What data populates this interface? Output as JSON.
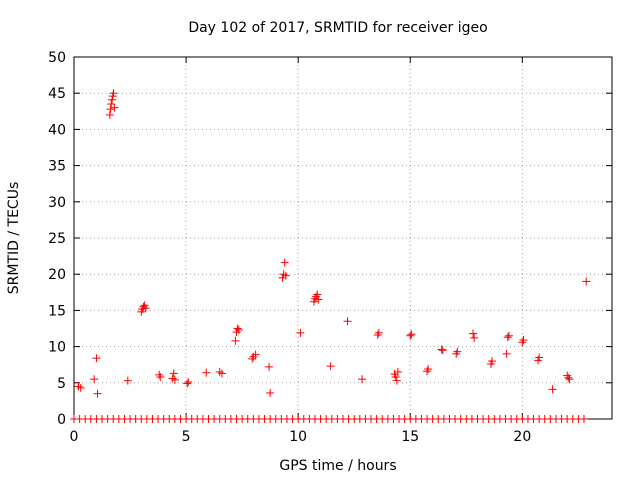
{
  "chart_data": {
    "type": "scatter",
    "title": "Day 102 of 2017, SRMTID for receiver igeo",
    "xlabel": "GPS time / hours",
    "ylabel": "SRMTID / TECUs",
    "xlim": [
      0,
      24
    ],
    "ylim": [
      0,
      50
    ],
    "xticks": [
      0,
      5,
      10,
      15,
      20
    ],
    "yticks": [
      0,
      5,
      10,
      15,
      20,
      25,
      30,
      35,
      40,
      45,
      50
    ],
    "grid": true,
    "marker": "plus",
    "color": "#ff0000",
    "series": [
      {
        "x": [
          0.0,
          0.25,
          0.5,
          0.75,
          1.0,
          1.25,
          1.5,
          1.75,
          2.0,
          2.25,
          2.5,
          2.75,
          3.0,
          3.25,
          3.5,
          3.75,
          4.0,
          4.25,
          4.5,
          4.75,
          5.0,
          5.25,
          5.5,
          5.75,
          6.0,
          6.25,
          6.5,
          6.75,
          7.0,
          7.25,
          7.5,
          7.75,
          8.0,
          8.25,
          8.5,
          8.75,
          9.0,
          9.25,
          9.5,
          9.75,
          10.0,
          10.25,
          10.5,
          10.75,
          11.0,
          11.25,
          11.5,
          11.75,
          12.0,
          12.25,
          12.5,
          12.75,
          13.0,
          13.25,
          13.5,
          13.75,
          14.0,
          14.25,
          14.5,
          14.75,
          15.0,
          15.25,
          15.5,
          15.75,
          16.0,
          16.25,
          16.5,
          16.75,
          17.0,
          17.25,
          17.5,
          17.75,
          18.0,
          18.25,
          18.5,
          18.75,
          19.0,
          19.25,
          19.5,
          19.75,
          20.0,
          20.25,
          20.5,
          20.75,
          21.0,
          21.25,
          21.5,
          21.75,
          22.0,
          22.25,
          22.5,
          22.75,
          0.2,
          0.3,
          0.9,
          1.0,
          1.05,
          1.6,
          1.63,
          1.66,
          1.7,
          1.73,
          1.76,
          1.8,
          2.4,
          3.0,
          3.05,
          3.1,
          3.15,
          3.2,
          3.8,
          3.85,
          4.4,
          4.45,
          4.5,
          5.05,
          5.1,
          5.9,
          6.5,
          6.6,
          7.2,
          7.25,
          7.3,
          7.35,
          7.95,
          8.0,
          8.1,
          8.7,
          8.75,
          9.3,
          9.35,
          9.4,
          9.45,
          10.1,
          10.7,
          10.75,
          10.8,
          10.85,
          10.9,
          11.45,
          12.2,
          12.85,
          13.55,
          13.6,
          14.3,
          14.35,
          14.4,
          14.45,
          15.0,
          15.05,
          15.75,
          15.8,
          16.4,
          16.45,
          17.05,
          17.1,
          17.8,
          17.85,
          18.6,
          18.65,
          19.3,
          19.35,
          19.4,
          20.0,
          20.05,
          20.7,
          20.75,
          21.35,
          22.0,
          22.05,
          22.1,
          22.85
        ],
        "y": [
          0,
          0,
          0,
          0,
          0,
          0,
          0,
          0,
          0,
          0,
          0,
          0,
          0,
          0,
          0,
          0,
          0,
          0,
          0,
          0,
          0,
          0,
          0,
          0,
          0,
          0,
          0,
          0,
          0,
          0,
          0,
          0,
          0,
          0,
          0,
          0,
          0,
          0,
          0,
          0,
          0,
          0,
          0,
          0,
          0,
          0,
          0,
          0,
          0,
          0,
          0,
          0,
          0,
          0,
          0,
          0,
          0,
          0,
          0,
          0,
          0,
          0,
          0,
          0,
          0,
          0,
          0,
          0,
          0,
          0,
          0,
          0,
          0,
          0,
          0,
          0,
          0,
          0,
          0,
          0,
          0,
          0,
          0,
          0,
          0,
          0,
          0,
          0,
          0,
          0,
          0,
          0,
          4.5,
          4.3,
          5.5,
          8.4,
          3.5,
          42.0,
          42.8,
          43.5,
          44.1,
          44.6,
          45.0,
          43.0,
          5.3,
          14.8,
          15.2,
          15.5,
          15.7,
          15.3,
          6.1,
          5.8,
          5.6,
          6.3,
          5.4,
          4.9,
          5.1,
          6.4,
          6.5,
          6.3,
          10.8,
          12.0,
          12.5,
          12.3,
          8.3,
          8.6,
          8.9,
          7.2,
          3.6,
          19.5,
          20.0,
          21.6,
          19.8,
          11.9,
          16.2,
          16.6,
          16.9,
          17.2,
          16.5,
          7.3,
          13.5,
          5.5,
          11.6,
          11.9,
          6.2,
          5.8,
          5.3,
          6.5,
          11.5,
          11.7,
          6.6,
          6.9,
          9.6,
          9.5,
          9.0,
          9.3,
          11.8,
          11.2,
          7.6,
          8.0,
          9.0,
          11.3,
          11.5,
          10.6,
          10.9,
          8.1,
          8.5,
          4.1,
          6.0,
          5.7,
          5.5,
          19.0
        ]
      }
    ]
  }
}
